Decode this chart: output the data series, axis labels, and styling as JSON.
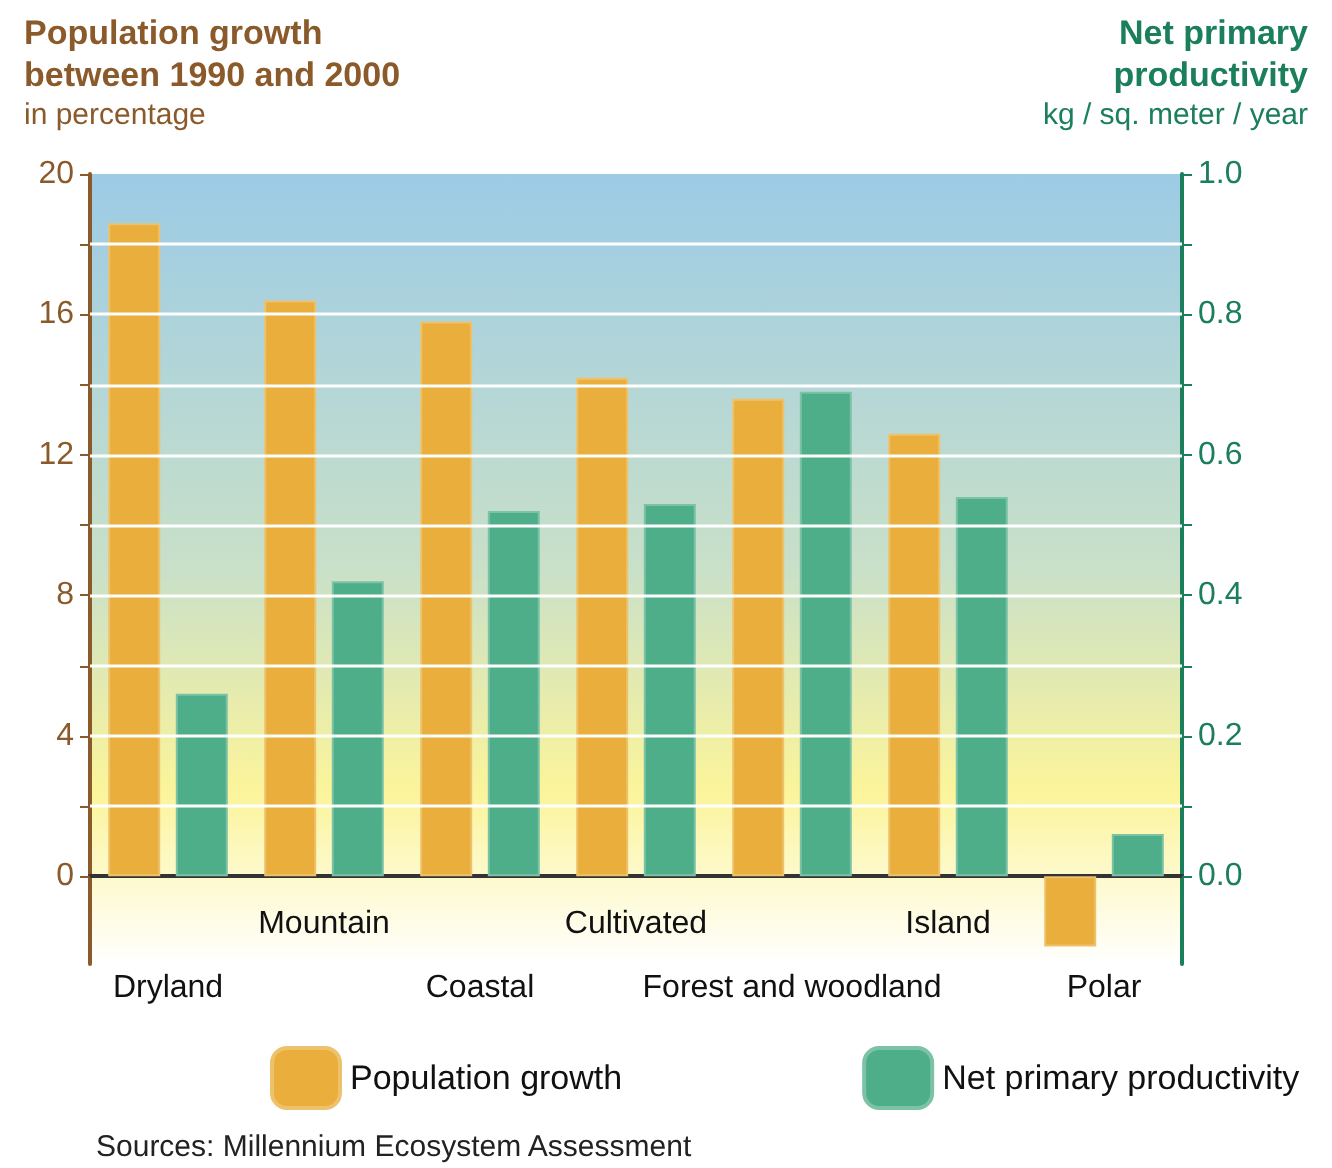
{
  "chart_data": {
    "type": "bar",
    "ylabel": "Population growth between 1990 and 2000",
    "y2label": "Net primary productivity",
    "annotations": [
      "in percentage",
      "kg / sq. meter / year",
      "Sources: Millennium Ecosystem Assessment"
    ],
    "categories": [
      "Dryland",
      "Mountain",
      "Coastal",
      "Cultivated",
      "Forest and woodland",
      "Island",
      "Polar"
    ],
    "series": [
      {
        "name": "Population growth",
        "color": "#e9ae3c",
        "values": [
          18.6,
          16.4,
          15.8,
          14.2,
          13.6,
          12.6,
          -2.0
        ]
      },
      {
        "name": "Net primary productivity",
        "color": "#4fae8a",
        "axis": "y2",
        "values": [
          0.26,
          0.42,
          0.52,
          0.53,
          0.69,
          0.54,
          0.06
        ]
      }
    ],
    "ylim": [
      -2.5,
      20
    ],
    "yticks": [
      0,
      {
        "value": 2,
        "label": null
      },
      4,
      {
        "value": 6,
        "label": null
      },
      8,
      {
        "value": 10,
        "label": null
      },
      12,
      {
        "value": 14,
        "label": null
      },
      16,
      {
        "value": 18,
        "label": null
      },
      20
    ],
    "y2lim": [
      -0.125,
      1.0
    ],
    "y2ticks": [
      "0.0",
      {
        "value": 0.1,
        "label": null
      },
      {
        "value": 0.2,
        "label": "0.2"
      },
      {
        "value": 0.3,
        "label": null
      },
      {
        "value": 0.4,
        "label": "0.4"
      },
      {
        "value": 0.5,
        "label": null
      },
      {
        "value": 0.6,
        "label": "0.6"
      },
      {
        "value": 0.7,
        "label": null
      },
      {
        "value": 0.8,
        "label": "0.8"
      },
      {
        "value": 0.9,
        "label": null
      },
      {
        "value": 1.0,
        "label": "1.0"
      }
    ],
    "grid": "y",
    "legend": "bottom"
  }
}
